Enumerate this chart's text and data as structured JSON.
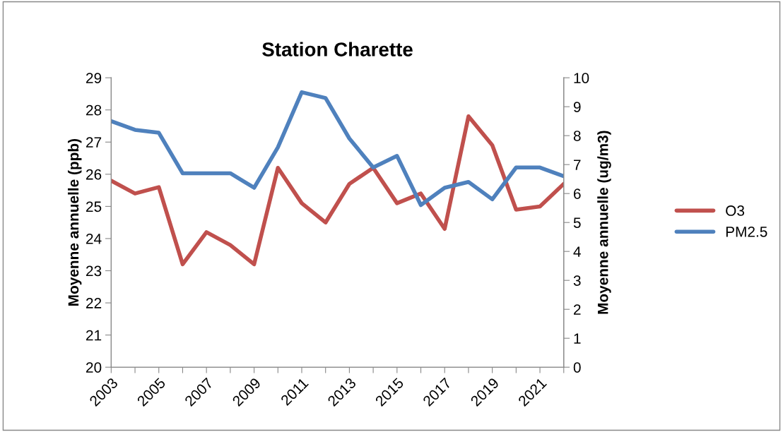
{
  "chart_data": {
    "type": "line",
    "title": "Station Charette",
    "ylabel": "Moyenne annuelle (ppb)",
    "y2label": "Moyenne annuelle (ug/m3)",
    "categories": [
      "2003",
      null,
      "2005",
      null,
      "2007",
      null,
      "2009",
      null,
      "2011",
      null,
      "2013",
      null,
      "2015",
      null,
      "2017",
      null,
      "2019",
      null,
      "2021",
      null
    ],
    "series": [
      {
        "name": "O3",
        "color": "#c0504d",
        "values": [
          25.8,
          25.4,
          25.6,
          23.2,
          24.2,
          23.8,
          23.2,
          26.2,
          25.1,
          24.5,
          25.7,
          26.2,
          25.1,
          25.4,
          24.3,
          27.8,
          26.9,
          24.9,
          25.0,
          25.7
        ]
      },
      {
        "name": "PM2.5",
        "color": "#4f81bd",
        "axis": "y2",
        "values": [
          8.5,
          8.2,
          8.1,
          6.7,
          6.7,
          6.7,
          6.2,
          7.6,
          9.5,
          9.3,
          7.9,
          6.9,
          7.3,
          5.6,
          6.2,
          6.4,
          5.8,
          6.9,
          6.9,
          6.6
        ]
      }
    ],
    "ylim": [
      20,
      29
    ],
    "yticks": [
      20,
      21,
      22,
      23,
      24,
      25,
      26,
      27,
      28,
      29
    ],
    "y2lim": [
      0,
      10
    ],
    "y2ticks": [
      0,
      1,
      2,
      3,
      4,
      5,
      6,
      7,
      8,
      9,
      10
    ],
    "grid": false,
    "legend": "right",
    "marker": "none",
    "line_style": "solid"
  }
}
